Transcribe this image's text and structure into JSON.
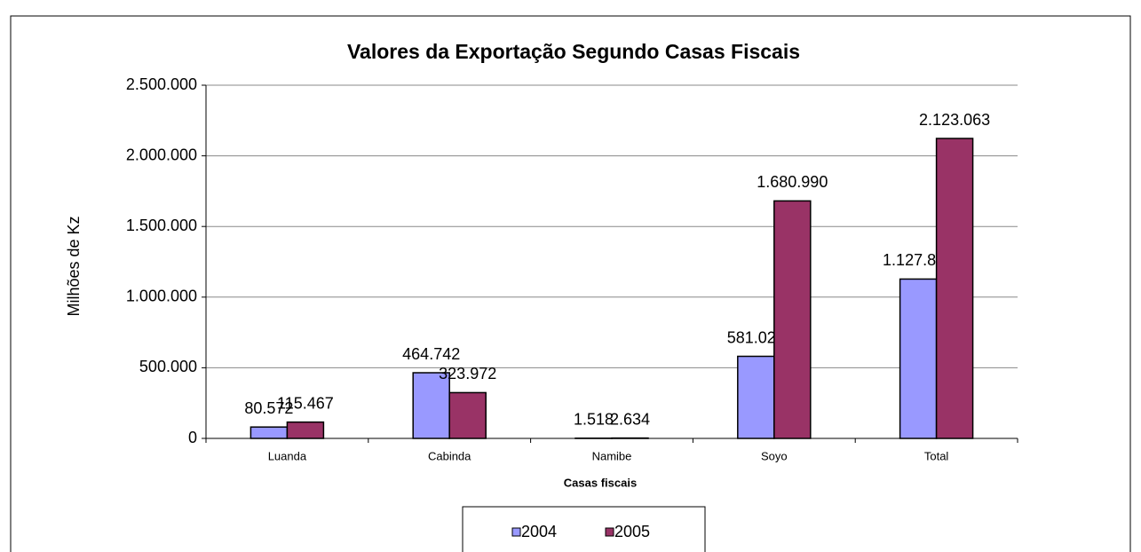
{
  "chart_data": {
    "type": "bar",
    "title": "Valores da Exportação Segundo Casas Fiscais",
    "x_label": "Casas fiscais",
    "y_label": "Milhões de Kz",
    "categories": [
      "Luanda",
      "Cabinda",
      "Namibe",
      "Soyo",
      "Total"
    ],
    "series": [
      {
        "name": "2004",
        "color": "#9999ff",
        "values": [
          80572,
          464742,
          1518,
          581029,
          1127861
        ],
        "value_labels": [
          "80.572",
          "464.742",
          "1.518",
          "581.029",
          "1.127.861"
        ]
      },
      {
        "name": "2005",
        "color": "#993366",
        "values": [
          115467,
          323972,
          2634,
          1680990,
          2123063
        ],
        "value_labels": [
          "115.467",
          "323.972",
          "2.634",
          "1.680.990",
          "2.123.063"
        ]
      }
    ],
    "ylim": [
      0,
      2500000
    ],
    "yticks": [
      0,
      {
        "value": 500000,
        "label": "500.000"
      },
      {
        "value": 1000000,
        "label": "1.000.000"
      },
      {
        "value": 1500000,
        "label": "1.500.000"
      },
      {
        "value": 2000000,
        "label": "2.000.000"
      },
      {
        "value": 2500000,
        "label": "2.500.000"
      }
    ],
    "grid": true,
    "legend": "bottom"
  }
}
